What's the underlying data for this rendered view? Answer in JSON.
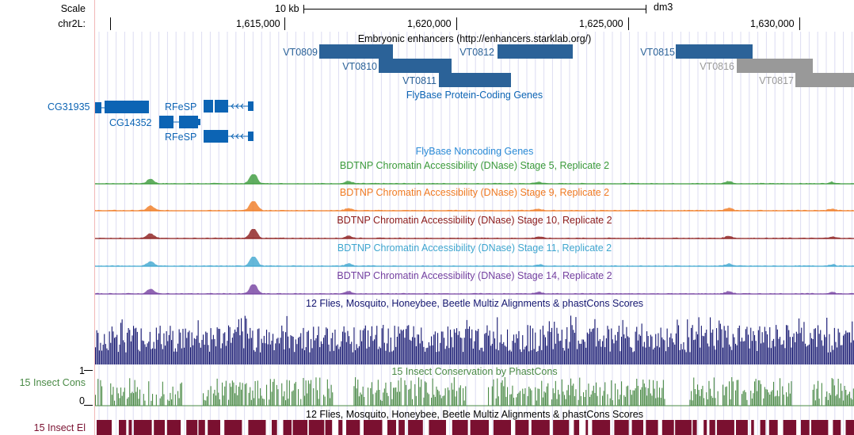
{
  "header": {
    "scale_label": "Scale",
    "chrom_label": "chr2L:",
    "scale_bar_label": "10 kb",
    "assembly": "dm3",
    "positions": [
      "1,615,000",
      "1,620,000",
      "1,625,000",
      "1,630,000"
    ]
  },
  "tracks": {
    "enhancers": {
      "title": "Embryonic enhancers (http://enhancers.starklab.org/)",
      "items": [
        {
          "name": "VT0809",
          "color": "#2b6298"
        },
        {
          "name": "VT0810",
          "color": "#2b6298"
        },
        {
          "name": "VT0811",
          "color": "#2b6298"
        },
        {
          "name": "VT0812",
          "color": "#2b6298"
        },
        {
          "name": "VT0815",
          "color": "#2b6298"
        },
        {
          "name": "VT0816",
          "color": "#999999"
        },
        {
          "name": "VT0817",
          "color": "#999999"
        }
      ]
    },
    "flybase_coding": {
      "title": "FlyBase Protein-Coding Genes",
      "color": "#0c64b4",
      "genes": [
        "CG31935",
        "CG14352",
        "RFeSP",
        "RFeSP"
      ]
    },
    "flybase_noncoding": {
      "title": "FlyBase Noncoding Genes",
      "color": "#2a8ad6"
    },
    "dnase": [
      {
        "title": "BDTNP Chromatin Accessibility (DNase) Stage 5, Replicate 2",
        "color": "#3a9a3a"
      },
      {
        "title": "BDTNP Chromatin Accessibility (DNase) Stage 9, Replicate 2",
        "color": "#f07a22"
      },
      {
        "title": "BDTNP Chromatin Accessibility (DNase) Stage 10, Replicate 2",
        "color": "#8b1a1a"
      },
      {
        "title": "BDTNP Chromatin Accessibility (DNase) Stage 11, Replicate 2",
        "color": "#3fa6cf"
      },
      {
        "title": "BDTNP Chromatin Accessibility (DNase) Stage 14, Replicate 2",
        "color": "#7440a0"
      }
    ],
    "multiz": {
      "title": "12 Flies, Mosquito, Honeybee, Beetle Multiz Alignments & phastCons Scores",
      "color": "#141670"
    },
    "phastcons": {
      "title": "15 Insect Conservation by PhastCons",
      "left_label": "15 Insect Cons",
      "max_label": "1",
      "min_label": "0",
      "color": "#4a8a46"
    },
    "elements": {
      "title": "12 Flies, Mosquito, Honeybee, Beetle Multiz Alignments & phastCons Scores",
      "left_label": "15 Insect El",
      "color": "#7a1030"
    }
  }
}
